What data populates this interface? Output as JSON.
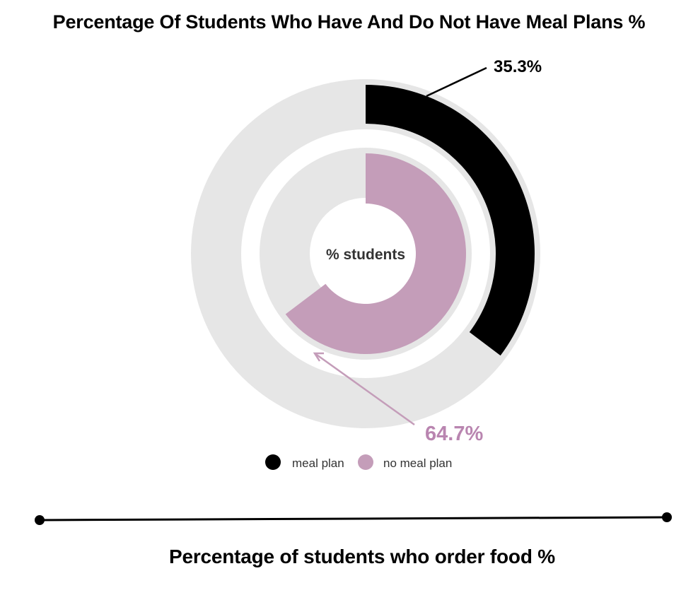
{
  "page": {
    "title": "Percentage Of Students Who Have And Do Not Have Meal Plans %",
    "bottom_title": "Percentage of students who order food %"
  },
  "chart_data": {
    "type": "radial-bar",
    "title": "Percentage Of Students Who Have And Do Not Have Meal Plans %",
    "center_label": "% students",
    "series": [
      {
        "name": "meal plan",
        "value": 35.3,
        "label": "35.3%",
        "color": "#000000"
      },
      {
        "name": "no meal plan",
        "value": 64.7,
        "label": "64.7%",
        "color": "#c49db9"
      }
    ],
    "track_color": "#e6e6e6",
    "legend_position": "bottom",
    "max": 100
  },
  "divider": {
    "caption": "Percentage of students who order food %"
  }
}
